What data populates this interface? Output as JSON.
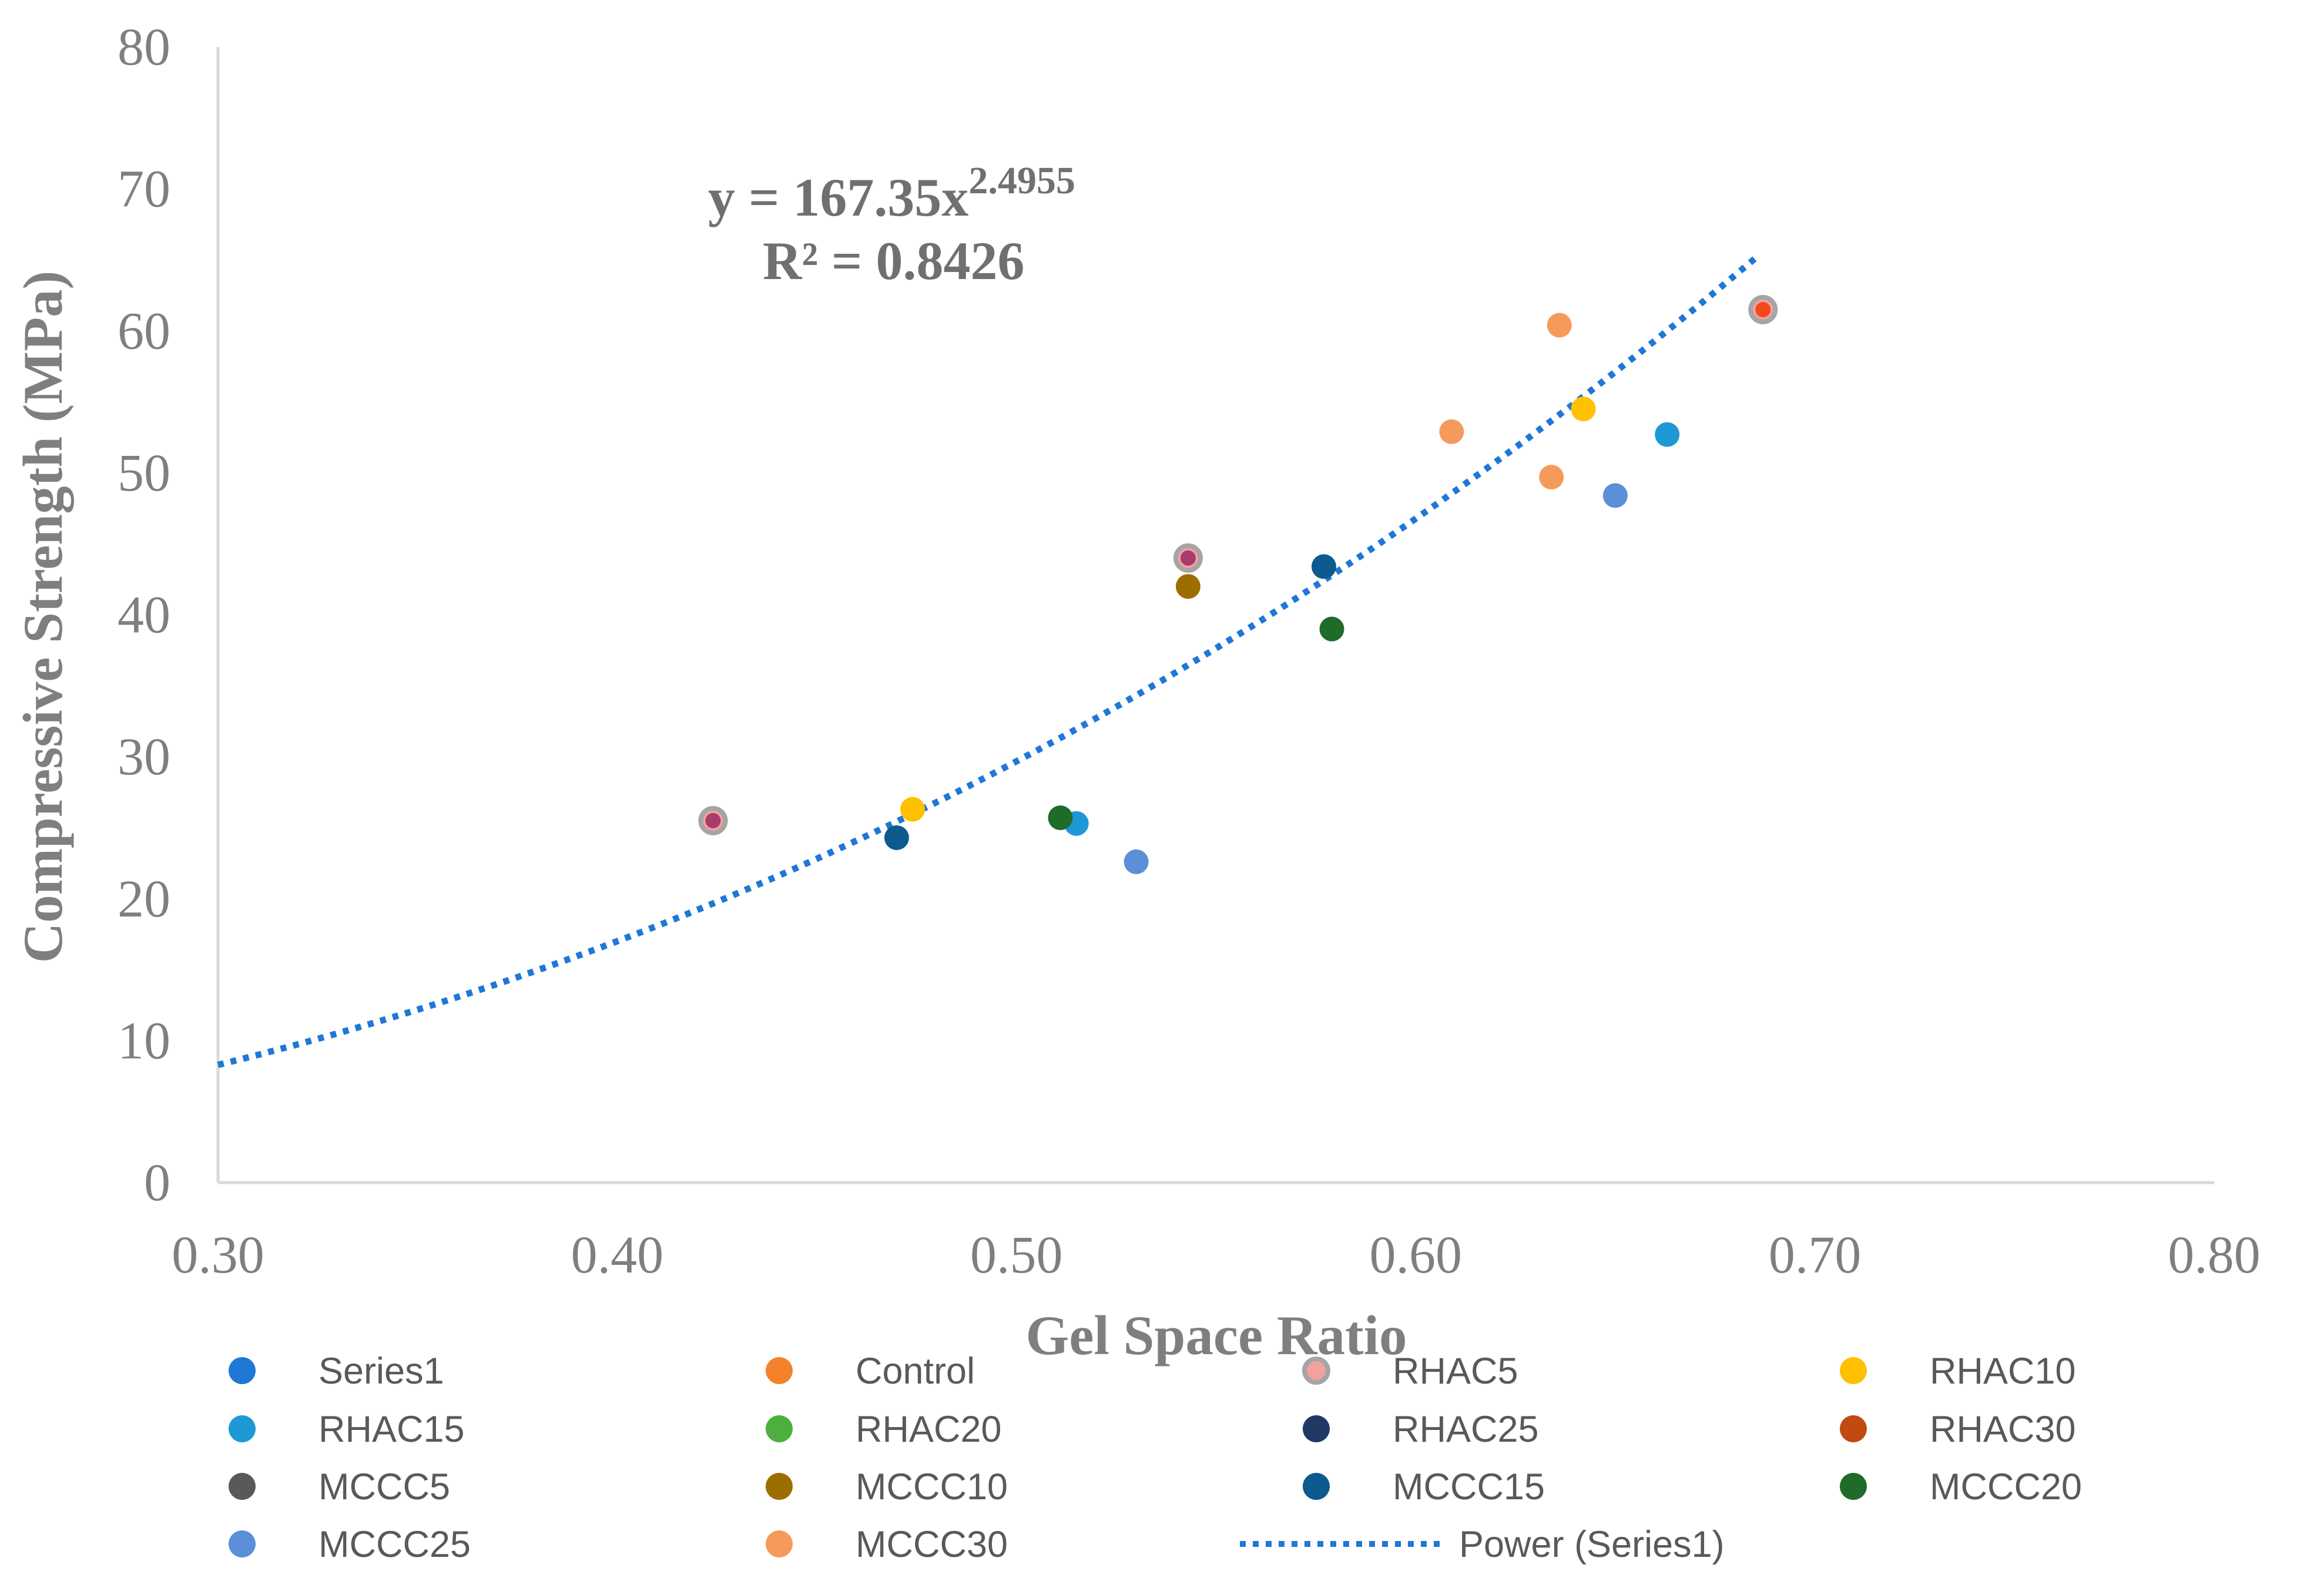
{
  "chart_data": {
    "type": "scatter",
    "title": "",
    "xlabel": "Gel Space Ratio",
    "ylabel": "Compressive Strength (MPa)",
    "xlim": [
      0.3,
      0.8
    ],
    "ylim": [
      0,
      80
    ],
    "x_ticks": [
      "0.30",
      "0.40",
      "0.50",
      "0.60",
      "0.70",
      "0.80"
    ],
    "y_ticks": [
      "0",
      "10",
      "20",
      "30",
      "40",
      "50",
      "60",
      "70",
      "80"
    ],
    "x_tick_values": [
      0.3,
      0.4,
      0.5,
      0.6,
      0.7,
      0.8
    ],
    "y_tick_values": [
      0,
      10,
      20,
      30,
      40,
      50,
      60,
      70,
      80
    ],
    "grid": false,
    "legend_position": "bottom",
    "series": [
      {
        "name": "Series1",
        "color": "#1f77d6",
        "points": []
      },
      {
        "name": "Control",
        "color": "#f5822a",
        "points": [
          {
            "x": 0.687,
            "y": 61.5
          }
        ]
      },
      {
        "name": "RHAC5",
        "color": "#f2a0a0",
        "ring": "#a5a5a5",
        "points": [
          {
            "x": 0.424,
            "y": 25.5
          },
          {
            "x": 0.543,
            "y": 44.0
          },
          {
            "x": 0.687,
            "y": 61.5
          }
        ]
      },
      {
        "name": "RHAC10",
        "color": "#ffc000",
        "points": [
          {
            "x": 0.474,
            "y": 26.3
          },
          {
            "x": 0.642,
            "y": 54.5
          }
        ]
      },
      {
        "name": "RHAC15",
        "color": "#1f98d6",
        "points": [
          {
            "x": 0.515,
            "y": 25.3
          },
          {
            "x": 0.663,
            "y": 52.7
          }
        ]
      },
      {
        "name": "RHAC20",
        "color": "#4caf3e",
        "points": []
      },
      {
        "name": "RHAC25",
        "color": "#203864",
        "points": []
      },
      {
        "name": "RHAC30",
        "color": "#c04a10",
        "points": []
      },
      {
        "name": "MCCC5",
        "color": "#595959",
        "points": []
      },
      {
        "name": "MCCC10",
        "color": "#9c6e00",
        "points": [
          {
            "x": 0.543,
            "y": 42.0
          }
        ]
      },
      {
        "name": "MCCC15",
        "color": "#0c5a8e",
        "points": [
          {
            "x": 0.47,
            "y": 24.3
          },
          {
            "x": 0.577,
            "y": 43.4
          }
        ]
      },
      {
        "name": "MCCC20",
        "color": "#1e6b2a",
        "points": [
          {
            "x": 0.511,
            "y": 25.7
          },
          {
            "x": 0.579,
            "y": 39.0
          }
        ]
      },
      {
        "name": "MCCC25",
        "color": "#5b8fd8",
        "points": [
          {
            "x": 0.53,
            "y": 22.6
          },
          {
            "x": 0.65,
            "y": 48.4
          }
        ]
      },
      {
        "name": "MCCC30",
        "color": "#f69a5c",
        "points": [
          {
            "x": 0.609,
            "y": 52.9
          },
          {
            "x": 0.634,
            "y": 49.7
          },
          {
            "x": 0.636,
            "y": 60.4
          }
        ]
      }
    ],
    "overlay_points": [
      {
        "x": 0.424,
        "y": 25.5,
        "color": "#a83c6a"
      },
      {
        "x": 0.543,
        "y": 44.0,
        "color": "#a83c6a"
      },
      {
        "x": 0.687,
        "y": 61.5,
        "color": "#f5471c"
      }
    ],
    "trendline": {
      "name": "Power (Series1)",
      "type": "power",
      "coefficient": 167.35,
      "exponent": 2.4955,
      "r_squared": 0.8426,
      "x_range": [
        0.3,
        0.685
      ],
      "color": "#1f77d6"
    },
    "equation_annotation": {
      "line1_prefix": "y = 167.35x",
      "line1_superscript": "2.4955",
      "line2": "R² = 0.8426"
    }
  }
}
